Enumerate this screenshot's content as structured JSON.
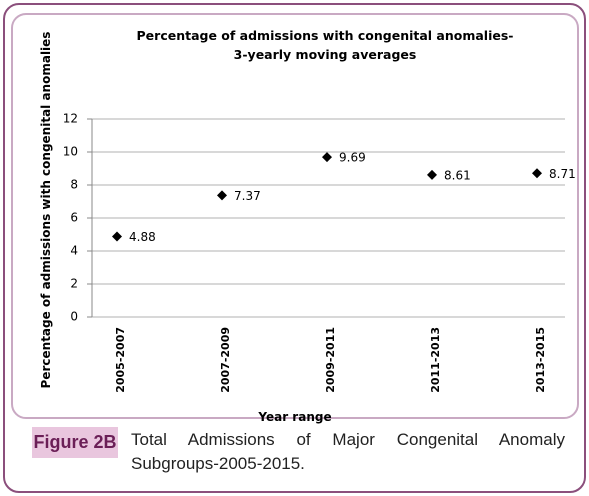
{
  "chart_data": {
    "type": "scatter",
    "title": [
      "Percentage of admissions with congenital anomalies-",
      "3-yearly moving averages"
    ],
    "y_label": "Percentage of admissions with congenital anomalies",
    "x_label": "Year range",
    "categories": [
      "2005-2007",
      "2007-2009",
      "2009-2011",
      "2011-2013",
      "2013-2015"
    ],
    "values": [
      4.88,
      7.37,
      9.69,
      8.61,
      8.71
    ],
    "color": "#000000",
    "ylim": [
      0,
      12
    ],
    "yticks": [
      0,
      2,
      4,
      6,
      8,
      10,
      12
    ],
    "grid": true
  },
  "figure": {
    "label": "Figure 2B",
    "caption": "Total Admissions of Major Congenital Anomaly Subgroups-2005-2015."
  }
}
